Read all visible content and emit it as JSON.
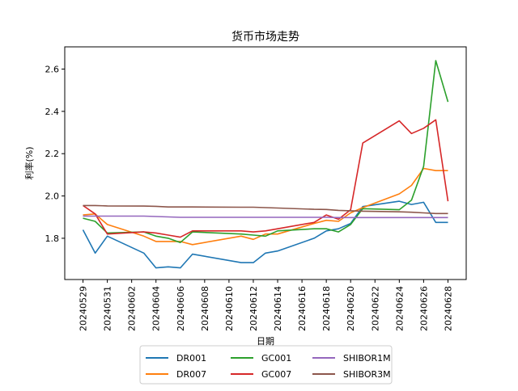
{
  "chart_data": {
    "type": "line",
    "title": "货币市场走势",
    "xlabel": "日期",
    "ylabel": "利率(%)",
    "ylim": [
      1.605,
      2.705
    ],
    "yticks": [
      1.8,
      2.0,
      2.2,
      2.4,
      2.6
    ],
    "ytick_labels": [
      "1.8",
      "2.0",
      "2.2",
      "2.4",
      "2.6"
    ],
    "x": [
      "20240529",
      "20240530",
      "20240531",
      "20240603",
      "20240604",
      "20240605",
      "20240606",
      "20240607",
      "20240611",
      "20240612",
      "20240613",
      "20240614",
      "20240617",
      "20240618",
      "20240619",
      "20240620",
      "20240621",
      "20240624",
      "20240625",
      "20240626",
      "20240627",
      "20240628"
    ],
    "x_numeric": [
      0,
      1,
      2,
      5,
      6,
      7,
      8,
      9,
      13,
      14,
      15,
      16,
      19,
      20,
      21,
      22,
      23,
      26,
      27,
      28,
      29,
      30
    ],
    "xlim": [
      -1.5,
      31.5
    ],
    "xticks": [
      0,
      2,
      4,
      6,
      8,
      10,
      12,
      14,
      16,
      18,
      20,
      22,
      24,
      26,
      28,
      30
    ],
    "xtick_labels": [
      "20240529",
      "20240531",
      "20240602",
      "20240604",
      "20240606",
      "20240608",
      "20240610",
      "20240612",
      "20240614",
      "20240616",
      "20240618",
      "20240620",
      "20240622",
      "20240624",
      "20240626",
      "20240628"
    ],
    "grid": false,
    "legend_position": "bottom-center",
    "series": [
      {
        "name": "DR001",
        "color": "#1f77b4",
        "values": [
          1.84,
          1.73,
          1.81,
          1.73,
          1.66,
          1.665,
          1.66,
          1.725,
          1.685,
          1.685,
          1.73,
          1.74,
          1.8,
          1.835,
          1.845,
          1.87,
          1.95,
          1.975,
          1.96,
          1.97,
          1.875,
          1.875
        ]
      },
      {
        "name": "DR007",
        "color": "#ff7f0e",
        "values": [
          1.91,
          1.915,
          1.865,
          1.81,
          1.785,
          1.785,
          1.785,
          1.77,
          1.81,
          1.795,
          1.82,
          1.82,
          1.87,
          1.885,
          1.88,
          1.92,
          1.945,
          2.01,
          2.05,
          2.13,
          2.12,
          2.12
        ]
      },
      {
        "name": "GC001",
        "color": "#2ca02c",
        "values": [
          1.895,
          1.88,
          1.825,
          1.83,
          1.81,
          1.8,
          1.78,
          1.83,
          1.82,
          1.815,
          1.81,
          1.835,
          1.845,
          1.845,
          1.83,
          1.865,
          1.94,
          1.935,
          1.98,
          2.14,
          2.64,
          2.445
        ]
      },
      {
        "name": "GC007",
        "color": "#d62728",
        "values": [
          1.955,
          1.915,
          1.82,
          1.83,
          1.825,
          1.815,
          1.805,
          1.835,
          1.835,
          1.83,
          1.835,
          1.845,
          1.875,
          1.91,
          1.89,
          1.935,
          2.25,
          2.355,
          2.295,
          2.32,
          2.36,
          1.975
        ]
      },
      {
        "name": "SHIBOR1M",
        "color": "#9467bd",
        "values": [
          1.905,
          1.905,
          1.905,
          1.905,
          1.903,
          1.901,
          1.899,
          1.899,
          1.899,
          1.899,
          1.899,
          1.899,
          1.899,
          1.899,
          1.898,
          1.898,
          1.898,
          1.898,
          1.898,
          1.898,
          1.898,
          1.898
        ]
      },
      {
        "name": "SHIBOR3M",
        "color": "#8c564b",
        "values": [
          1.955,
          1.955,
          1.953,
          1.952,
          1.951,
          1.948,
          1.948,
          1.948,
          1.947,
          1.947,
          1.945,
          1.943,
          1.937,
          1.936,
          1.932,
          1.93,
          1.928,
          1.925,
          1.923,
          1.92,
          1.917,
          1.917
        ]
      }
    ]
  }
}
